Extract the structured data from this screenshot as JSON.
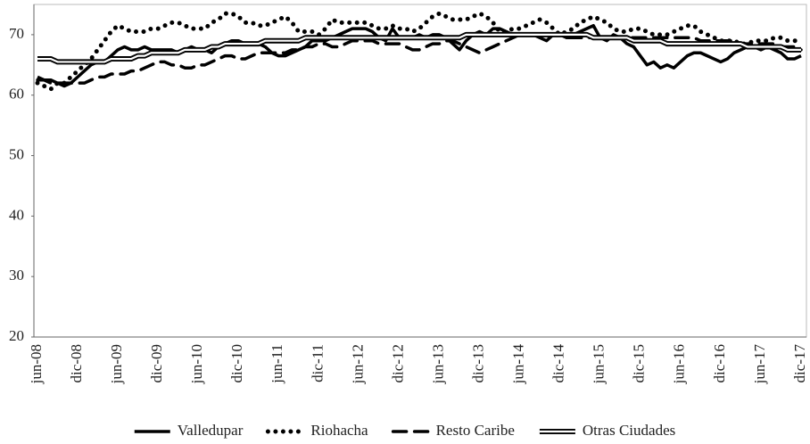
{
  "chart_data": {
    "type": "line",
    "categories": [
      "jun-08",
      null,
      null,
      null,
      null,
      null,
      "dic-08",
      null,
      null,
      null,
      null,
      null,
      "jun-09",
      null,
      null,
      null,
      null,
      null,
      "dic-09",
      null,
      null,
      null,
      null,
      null,
      "jun-10",
      null,
      null,
      null,
      null,
      null,
      "dic-10",
      null,
      null,
      null,
      null,
      null,
      "jun-11",
      null,
      null,
      null,
      null,
      null,
      "dic-11",
      null,
      null,
      null,
      null,
      null,
      "jun-12",
      null,
      null,
      null,
      null,
      null,
      "dic-12",
      null,
      null,
      null,
      null,
      null,
      "jun-13",
      null,
      null,
      null,
      null,
      null,
      "dic-13",
      null,
      null,
      null,
      null,
      null,
      "jun-14",
      null,
      null,
      null,
      null,
      null,
      "dic-14",
      null,
      null,
      null,
      null,
      null,
      "jun-15",
      null,
      null,
      null,
      null,
      null,
      "dic-15",
      null,
      null,
      null,
      null,
      null,
      "jun-16",
      null,
      null,
      null,
      null,
      null,
      "dic-16",
      null,
      null,
      null,
      null,
      null,
      "jun-17",
      null,
      null,
      null,
      null,
      null,
      "dic-17"
    ],
    "series": [
      {
        "name": "Valledupar",
        "color": "#000000",
        "style": "solid",
        "values": [
          63,
          62.5,
          62.5,
          62,
          61.5,
          62,
          63,
          64,
          65,
          65.5,
          65.5,
          66.5,
          67.5,
          68,
          67.5,
          67.5,
          68,
          67.5,
          67.5,
          67.5,
          67.5,
          67,
          67.5,
          68,
          67.5,
          67.5,
          67,
          68,
          68.5,
          69,
          69,
          68.5,
          68.5,
          68.5,
          68,
          67,
          66.5,
          66.5,
          67,
          67.5,
          68,
          69,
          69,
          69,
          69.5,
          70,
          70.5,
          71,
          71,
          71,
          70.5,
          69.5,
          69,
          71,
          69.5,
          69.5,
          69.5,
          70,
          69.5,
          70,
          70,
          69.5,
          68.5,
          67.5,
          69,
          70,
          70.5,
          70,
          71,
          71,
          70.5,
          70,
          70,
          70,
          70,
          69.5,
          69,
          70,
          70,
          69.5,
          70,
          70.5,
          71,
          71.5,
          69.5,
          69,
          70,
          69.5,
          68.5,
          68,
          66.5,
          65,
          65.5,
          64.5,
          65,
          64.5,
          65.5,
          66.5,
          67,
          67,
          66.5,
          66,
          65.5,
          66,
          67,
          67.5,
          68,
          68,
          67.5,
          68,
          67.5,
          67,
          66,
          66,
          66.5
        ]
      },
      {
        "name": "Riohacha",
        "color": "#000000",
        "style": "dotted",
        "values": [
          62,
          61.5,
          61,
          62,
          62,
          63,
          64,
          65,
          66,
          67.5,
          69,
          70.5,
          71.5,
          71,
          70.5,
          70.5,
          70.5,
          71,
          71,
          71.5,
          72,
          72,
          71.5,
          71,
          71,
          71,
          72,
          72.5,
          73.5,
          73.5,
          73,
          72,
          72,
          71.5,
          71.5,
          72,
          72.5,
          73,
          72,
          70.5,
          70.5,
          70.5,
          70,
          71,
          72.5,
          72,
          72,
          72,
          72,
          72,
          71.5,
          71,
          71,
          71.5,
          71,
          71,
          70.5,
          71,
          72,
          73,
          73.5,
          73,
          72.5,
          72.5,
          72.5,
          73,
          73.5,
          73,
          72,
          70.5,
          70.5,
          71,
          71,
          71.5,
          72,
          72.5,
          72,
          71,
          70,
          70.5,
          71,
          72,
          72.5,
          73,
          72.5,
          72,
          71,
          70.5,
          70.5,
          71,
          71,
          70.5,
          70,
          70,
          70,
          70.5,
          71,
          71.5,
          71.5,
          70.5,
          70,
          69.5,
          69,
          69,
          69,
          68.5,
          68.5,
          69,
          69,
          69,
          69.5,
          69.5,
          69,
          69,
          69
        ]
      },
      {
        "name": "Resto Caribe",
        "color": "#000000",
        "style": "dashed",
        "values": [
          62.5,
          62.5,
          62,
          62,
          62,
          62,
          62,
          62,
          62.5,
          63,
          63,
          63.5,
          63.5,
          63.5,
          64,
          64,
          64.5,
          65,
          65.5,
          65.5,
          65,
          65,
          64.5,
          64.5,
          65,
          65,
          65.5,
          66,
          66.5,
          66.5,
          66,
          66,
          66.5,
          67,
          67,
          67,
          67,
          67,
          67.5,
          67.5,
          68,
          68,
          68.5,
          68.5,
          68,
          68,
          68.5,
          69,
          69,
          69,
          69,
          68.5,
          68.5,
          68.5,
          68.5,
          68,
          67.5,
          67.5,
          68,
          68.5,
          68.5,
          69,
          69,
          68.5,
          68,
          67.5,
          67,
          67.5,
          68,
          68.5,
          69,
          69.5,
          70,
          70,
          70,
          70,
          70,
          70,
          70,
          69.5,
          69.5,
          69.5,
          69.5,
          69.5,
          69.5,
          69.5,
          69.5,
          69.5,
          69.5,
          69.5,
          69.5,
          69.5,
          69.5,
          69.5,
          69.5,
          69.5,
          69.5,
          69.5,
          69.5,
          69,
          69,
          69,
          69,
          69,
          69,
          68.5,
          68.5,
          68.5,
          68.5,
          68.5,
          68.5,
          68,
          68,
          68,
          67.5
        ]
      },
      {
        "name": "Otras Ciudades",
        "color": "#000000",
        "style": "double",
        "values": [
          66,
          66,
          66,
          65.5,
          65.5,
          65.5,
          65.5,
          65.5,
          65.5,
          65.5,
          65.5,
          66,
          66,
          66,
          66,
          66.5,
          66.5,
          67,
          67,
          67,
          67,
          67,
          67.5,
          67.5,
          67.5,
          67.5,
          68,
          68,
          68.5,
          68.5,
          68.5,
          68.5,
          68.5,
          68.5,
          69,
          69,
          69,
          69,
          69,
          69,
          69.5,
          69.5,
          69.5,
          69.5,
          69.5,
          69.5,
          69.5,
          69.5,
          69.5,
          69.5,
          69.5,
          69.5,
          69.5,
          69.5,
          69.5,
          69.5,
          69.5,
          69.5,
          69.5,
          69.5,
          69.5,
          69.5,
          69.5,
          69.5,
          70,
          70,
          70,
          70,
          70,
          70,
          70,
          70,
          70,
          70,
          70,
          70,
          70,
          70,
          70,
          70,
          70,
          70,
          70,
          69.5,
          69.5,
          69.5,
          69.5,
          69.5,
          69.5,
          69,
          69,
          69,
          69,
          69,
          68.5,
          68.5,
          68.5,
          68.5,
          68.5,
          68.5,
          68.5,
          68.5,
          68.5,
          68.5,
          68.5,
          68.5,
          68,
          68,
          68,
          68,
          68,
          68,
          67.5,
          67.5,
          67.5
        ]
      }
    ],
    "ylim": [
      20,
      75
    ],
    "yticks": [
      20,
      30,
      40,
      50,
      60,
      70
    ],
    "grid": false
  }
}
